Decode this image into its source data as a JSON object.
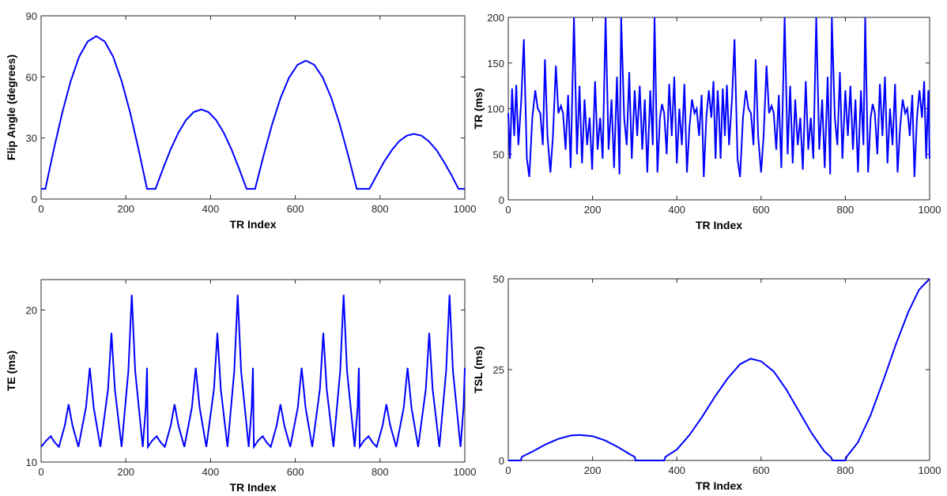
{
  "chart_data": [
    {
      "type": "line",
      "xlabel": "TR Index",
      "ylabel": "Flip Angle (degrees)",
      "xlim": [
        0,
        1000
      ],
      "xticks": [
        0,
        200,
        400,
        600,
        800,
        1000
      ],
      "ylim": [
        0,
        90
      ],
      "yticks": [
        0,
        30,
        60,
        90
      ],
      "series": [
        {
          "color": "#0000ff",
          "x": [
            0,
            10,
            30,
            50,
            70,
            90,
            110,
            130,
            150,
            170,
            190,
            210,
            230,
            250,
            270,
            288,
            306,
            324,
            342,
            360,
            378,
            395,
            413,
            431,
            449,
            467,
            485,
            505,
            525,
            545,
            565,
            585,
            605,
            625,
            645,
            665,
            685,
            705,
            725,
            745,
            775,
            793,
            810,
            828,
            845,
            863,
            880,
            898,
            915,
            933,
            950,
            968,
            985,
            1000
          ],
          "values": [
            5,
            5,
            24.4,
            42.5,
            58,
            70,
            77.4,
            80,
            77.4,
            70,
            58,
            42.5,
            24.4,
            5,
            5,
            15.1,
            24.5,
            32.6,
            38.8,
            42.7,
            44,
            42.7,
            38.8,
            32.6,
            24.5,
            15.1,
            5,
            5,
            21.3,
            36.5,
            49.5,
            59.6,
            65.9,
            68,
            65.9,
            59.6,
            49.5,
            36.5,
            21.3,
            5,
            5,
            12,
            18.5,
            24.1,
            28.4,
            31.1,
            32,
            31.1,
            28.4,
            24.1,
            18.5,
            12,
            5,
            5
          ]
        }
      ]
    },
    {
      "type": "line",
      "xlabel": "TR Index",
      "ylabel": "TR (ms)",
      "xlim": [
        0,
        1000
      ],
      "xticks": [
        0,
        200,
        400,
        600,
        800,
        1000
      ],
      "ylim": [
        0,
        200
      ],
      "yticks": [
        0,
        50,
        100,
        150,
        200
      ],
      "series": [
        {
          "color": "#0000ff",
          "x": [
            0,
            4,
            9,
            14,
            19,
            24,
            31,
            37,
            44,
            50,
            57,
            64,
            70,
            76,
            82,
            87,
            93,
            100,
            106,
            113,
            119,
            125,
            130,
            136,
            142,
            148,
            156,
            163,
            169,
            175,
            181,
            187,
            193,
            199,
            206,
            212,
            218,
            224,
            231,
            238,
            245,
            251,
            258,
            264,
            268,
            275,
            281,
            287,
            293,
            300,
            306,
            312,
            318,
            324,
            330,
            337,
            343,
            347,
            354,
            360,
            365,
            370,
            376,
            382,
            388,
            394,
            400,
            406,
            412,
            418,
            424,
            430,
            436,
            442,
            447,
            453,
            459,
            464,
            470,
            476,
            482,
            487,
            492,
            497,
            500,
            504,
            509,
            514,
            519,
            524,
            531,
            537,
            544,
            550,
            557,
            564,
            570,
            576,
            582,
            587,
            593,
            600,
            606,
            613,
            619,
            625,
            630,
            636,
            642,
            648,
            656,
            663,
            669,
            675,
            681,
            687,
            693,
            699,
            706,
            712,
            718,
            724,
            731,
            738,
            745,
            751,
            758,
            764,
            768,
            775,
            781,
            787,
            793,
            800,
            806,
            812,
            818,
            824,
            830,
            837,
            843,
            847,
            854,
            860,
            865,
            870,
            876,
            882,
            888,
            894,
            900,
            906,
            912,
            918,
            924,
            930,
            936,
            942,
            947,
            953,
            959,
            964,
            970,
            976,
            982,
            987,
            992,
            997,
            1000
          ],
          "values": [
            95,
            45,
            122,
            70,
            126,
            60,
            110,
            176,
            45,
            25,
            90,
            120,
            100,
            95,
            60,
            154,
            70,
            30,
            70,
            147,
            95,
            103,
            95,
            55,
            115,
            35,
            200,
            50,
            125,
            40,
            110,
            60,
            90,
            33,
            130,
            55,
            90,
            45,
            200,
            55,
            110,
            35,
            135,
            28,
            200,
            90,
            60,
            140,
            45,
            120,
            70,
            125,
            55,
            110,
            30,
            120,
            60,
            200,
            30,
            90,
            105,
            95,
            50,
            127,
            70,
            135,
            40,
            100,
            60,
            127,
            30,
            80,
            110,
            95,
            100,
            70,
            115,
            25,
            90,
            120,
            90,
            130,
            45,
            120,
            95,
            45,
            122,
            70,
            126,
            60,
            110,
            176,
            45,
            25,
            90,
            120,
            100,
            95,
            60,
            154,
            70,
            30,
            70,
            147,
            95,
            103,
            95,
            55,
            115,
            35,
            200,
            50,
            125,
            40,
            110,
            60,
            90,
            33,
            130,
            55,
            90,
            45,
            200,
            55,
            110,
            35,
            135,
            28,
            200,
            90,
            60,
            140,
            45,
            120,
            70,
            125,
            55,
            110,
            30,
            120,
            60,
            200,
            30,
            90,
            105,
            95,
            50,
            127,
            70,
            135,
            40,
            100,
            60,
            127,
            30,
            80,
            110,
            95,
            100,
            70,
            115,
            25,
            90,
            120,
            90,
            130,
            45,
            120,
            45
          ]
        }
      ]
    },
    {
      "type": "line",
      "xlabel": "TR Index",
      "ylabel": "TE (ms)",
      "xlim": [
        0,
        1000
      ],
      "xticks": [
        0,
        200,
        400,
        600,
        800,
        1000
      ],
      "ylim": [
        10,
        22
      ],
      "yticks": [
        10,
        20
      ],
      "series": [
        {
          "color": "#0000ff",
          "x": [
            0,
            12,
            23,
            32,
            42,
            56,
            65,
            74,
            88,
            106,
            115,
            124,
            140,
            158,
            166,
            174,
            190,
            206,
            214,
            222,
            240,
            247,
            250,
            252,
            262,
            273,
            282,
            292,
            306,
            315,
            324,
            338,
            356,
            365,
            374,
            390,
            408,
            416,
            424,
            440,
            456,
            464,
            472,
            490,
            497,
            500,
            502,
            512,
            523,
            532,
            542,
            556,
            565,
            574,
            588,
            606,
            615,
            624,
            640,
            658,
            666,
            674,
            690,
            706,
            714,
            722,
            740,
            747,
            750,
            752,
            762,
            773,
            782,
            792,
            806,
            815,
            824,
            838,
            856,
            865,
            874,
            890,
            908,
            916,
            924,
            940,
            956,
            964,
            972,
            990,
            997,
            1000
          ],
          "values": [
            11,
            11.4,
            11.7,
            11.3,
            11,
            12.4,
            13.8,
            12.4,
            11,
            13.6,
            16.2,
            13.6,
            11,
            14.8,
            18.5,
            14.8,
            11,
            16,
            21,
            16,
            11,
            13.6,
            16.2,
            11,
            11.4,
            11.7,
            11.3,
            11,
            12.4,
            13.8,
            12.4,
            11,
            13.6,
            16.2,
            13.6,
            11,
            14.8,
            18.5,
            14.8,
            11,
            16,
            21,
            16,
            11,
            13.6,
            16.2,
            11,
            11.4,
            11.7,
            11.3,
            11,
            12.4,
            13.8,
            12.4,
            11,
            13.6,
            16.2,
            13.6,
            11,
            14.8,
            18.5,
            14.8,
            11,
            16,
            21,
            16,
            11,
            13.6,
            16.2,
            11,
            11.4,
            11.7,
            11.3,
            11,
            12.4,
            13.8,
            12.4,
            11,
            13.6,
            16.2,
            13.6,
            11,
            14.8,
            18.5,
            14.8,
            11,
            16,
            21,
            16,
            11,
            13.6,
            16.2
          ]
        }
      ]
    },
    {
      "type": "line",
      "xlabel": "TR Index",
      "ylabel": "TSL (ms)",
      "xlim": [
        0,
        1000
      ],
      "xticks": [
        0,
        200,
        400,
        600,
        800,
        1000
      ],
      "ylim": [
        0,
        50
      ],
      "yticks": [
        0,
        25,
        50
      ],
      "series": [
        {
          "color": "#0000ff",
          "x": [
            0,
            30,
            32,
            60,
            90,
            120,
            150,
            170,
            200,
            230,
            260,
            290,
            300,
            302,
            370,
            373,
            400,
            430,
            460,
            490,
            520,
            550,
            575,
            600,
            630,
            660,
            690,
            720,
            750,
            765,
            770,
            800,
            803,
            830,
            860,
            890,
            920,
            950,
            975,
            1000
          ],
          "values": [
            0,
            0,
            1,
            2.6,
            4.5,
            6,
            6.9,
            7,
            6.7,
            5.5,
            3.7,
            1.6,
            1,
            0,
            0,
            1,
            3,
            7,
            12,
            17.5,
            22.5,
            26.5,
            28,
            27.3,
            24.5,
            19.5,
            13.5,
            7.5,
            2.5,
            1,
            0,
            0,
            1,
            5,
            12.5,
            22,
            32,
            41,
            47,
            50
          ]
        }
      ]
    }
  ]
}
